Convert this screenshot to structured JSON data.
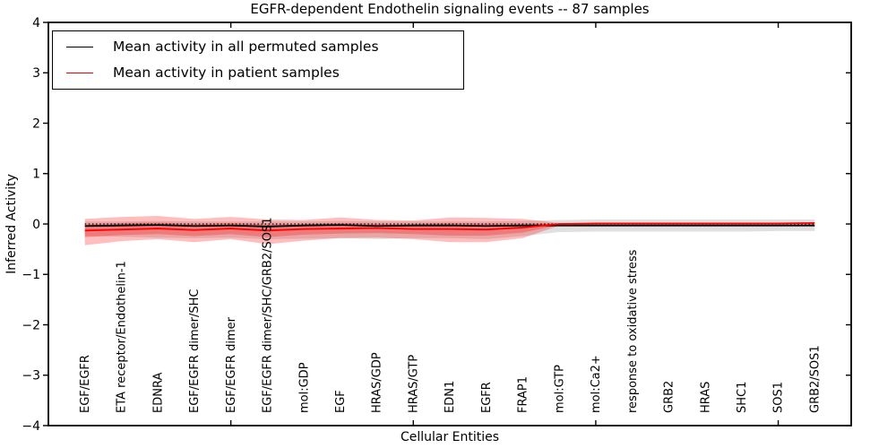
{
  "figure": {
    "background": "#ffffff",
    "accent_red": "#ff0000",
    "band_pink": "#ff0000",
    "band_gray": "#000000"
  },
  "chart_data": {
    "type": "line",
    "title": "EGFR-dependent Endothelin signaling events -- 87 samples",
    "xlabel": "Cellular Entities",
    "ylabel": "Inferred Activity",
    "ylim": [
      -4,
      4
    ],
    "yticks": [
      -4,
      -3,
      -2,
      -1,
      0,
      1,
      2,
      3,
      4
    ],
    "ytick_labels": [
      "−4",
      "−3",
      "−2",
      "−1",
      "0",
      "1",
      "2",
      "3",
      "4"
    ],
    "grid": false,
    "legend_position": "upper left",
    "categories": [
      "EGF/EGFR",
      "ETA receptor/Endothelin-1",
      "EDNRA",
      "EGF/EGFR dimer/SHC",
      "EGF/EGFR dimer",
      "EGF/EGFR dimer/SHC/GRB2/SOS1",
      "mol:GDP",
      "EGF",
      "HRAS/GDP",
      "HRAS/GTP",
      "EDN1",
      "EGFR",
      "FRAP1",
      "mol:GTP",
      "mol:Ca2+",
      "response to oxidative stress",
      "GRB2",
      "HRAS",
      "SHC1",
      "SOS1",
      "GRB2/SOS1"
    ],
    "x_major_tick_indices": [
      4,
      9,
      14,
      19
    ],
    "baseline": {
      "name": "zero-reference",
      "value": 0,
      "style": "dotted",
      "color": "#000000"
    },
    "series": [
      {
        "name": "Mean activity in all permuted samples",
        "color": "#000000",
        "style": "solid",
        "values": [
          -0.04,
          -0.03,
          -0.02,
          -0.04,
          -0.03,
          -0.05,
          -0.03,
          -0.02,
          -0.04,
          -0.03,
          -0.03,
          -0.04,
          -0.03,
          -0.03,
          -0.03,
          -0.03,
          -0.03,
          -0.03,
          -0.03,
          -0.03,
          -0.03
        ]
      },
      {
        "name": "Mean activity in patient samples",
        "color": "#ff0000",
        "style": "solid",
        "values": [
          -0.13,
          -0.11,
          -0.09,
          -0.12,
          -0.09,
          -0.13,
          -0.1,
          -0.09,
          -0.08,
          -0.1,
          -0.1,
          -0.11,
          -0.07,
          0.0,
          0.01,
          0.01,
          0.01,
          0.01,
          0.01,
          0.01,
          0.02
        ]
      }
    ],
    "bands": [
      {
        "name": "permuted-samples-range",
        "color": "#000000",
        "opacity": 0.12,
        "upper": [
          0.05,
          0.05,
          0.06,
          0.05,
          0.05,
          0.05,
          0.05,
          0.06,
          0.05,
          0.05,
          0.05,
          0.05,
          0.06,
          0.08,
          0.09,
          0.09,
          0.09,
          0.09,
          0.09,
          0.09,
          0.09
        ],
        "lower": [
          -0.24,
          -0.25,
          -0.27,
          -0.28,
          -0.27,
          -0.3,
          -0.29,
          -0.28,
          -0.3,
          -0.28,
          -0.28,
          -0.3,
          -0.24,
          -0.16,
          -0.15,
          -0.15,
          -0.15,
          -0.15,
          -0.15,
          -0.14,
          -0.14
        ]
      },
      {
        "name": "patient-samples-outer-range",
        "color": "#ff0000",
        "opacity": 0.26,
        "upper": [
          0.1,
          0.14,
          0.16,
          0.1,
          0.14,
          0.09,
          0.08,
          0.13,
          0.08,
          0.07,
          0.13,
          0.12,
          0.1,
          0.02,
          0.02,
          0.02,
          0.02,
          0.02,
          0.02,
          0.02,
          0.03
        ],
        "lower": [
          -0.42,
          -0.34,
          -0.3,
          -0.36,
          -0.3,
          -0.4,
          -0.33,
          -0.28,
          -0.27,
          -0.3,
          -0.36,
          -0.36,
          -0.28,
          -0.03,
          -0.01,
          -0.01,
          -0.01,
          -0.01,
          -0.01,
          -0.01,
          -0.02
        ]
      },
      {
        "name": "patient-samples-inner-range",
        "color": "#ff0000",
        "opacity": 0.26,
        "upper": [
          -0.01,
          0.02,
          0.03,
          0.0,
          0.02,
          -0.01,
          0.0,
          0.02,
          0.0,
          0.0,
          0.02,
          0.01,
          0.01,
          0.01,
          0.01,
          0.01,
          0.01,
          0.01,
          0.01,
          0.01,
          0.02
        ],
        "lower": [
          -0.26,
          -0.22,
          -0.2,
          -0.24,
          -0.2,
          -0.26,
          -0.21,
          -0.19,
          -0.18,
          -0.2,
          -0.23,
          -0.23,
          -0.17,
          -0.02,
          0.0,
          0.0,
          0.0,
          0.0,
          0.0,
          0.0,
          0.01
        ]
      }
    ]
  }
}
